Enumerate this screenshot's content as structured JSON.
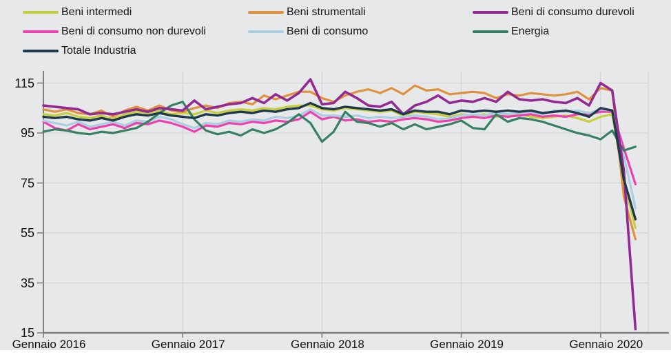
{
  "panel": {
    "background": "#e7e8ea",
    "axis_color": "#7f7f7f",
    "grid_color": "#d3d4d8"
  },
  "legend": {
    "items": [
      {
        "label": "Beni intermedi",
        "color": "#c9ce3e"
      },
      {
        "label": "Beni strumentali",
        "color": "#df923d"
      },
      {
        "label": "Beni di consumo durevoli",
        "color": "#932a93"
      },
      {
        "label": "Beni di consumo non durevoli",
        "color": "#ee3fae"
      },
      {
        "label": "Beni di consumo",
        "color": "#a9cfe0"
      },
      {
        "label": "Energia",
        "color": "#377f63"
      },
      {
        "label": "Totale Industria",
        "color": "#1c3a4a"
      }
    ]
  },
  "chart_data": {
    "type": "line",
    "title": "",
    "x_frequency": "monthly",
    "x_tick_labels": [
      "Gennaio 2016",
      "Gennaio 2017",
      "Gennaio 2018",
      "Gennaio 2019",
      "Gennaio 2020"
    ],
    "x_tick_month_indices": [
      0,
      12,
      24,
      36,
      48
    ],
    "y_ticks": [
      15,
      35,
      55,
      75,
      95,
      115
    ],
    "ylim": [
      15,
      118
    ],
    "grid": true,
    "legend_position": "top",
    "series": [
      {
        "name": "Beni intermedi",
        "color": "#c9ce3e",
        "values": [
          102.5,
          102,
          103,
          101.5,
          101,
          102,
          100.5,
          102.5,
          103.5,
          103,
          104,
          102.5,
          103,
          102.5,
          104,
          103,
          104,
          104.5,
          104,
          105,
          104.5,
          105.5,
          106,
          106,
          104.5,
          104,
          105,
          104.5,
          104,
          103.5,
          104,
          102,
          103.5,
          103,
          102.5,
          101.5,
          102.5,
          102,
          102.5,
          101.5,
          102,
          102.5,
          101.5,
          101,
          101.5,
          102,
          101,
          99.5,
          101.5,
          102.5,
          76,
          57
        ]
      },
      {
        "name": "Beni strumentali",
        "color": "#df923d",
        "values": [
          104.5,
          103.5,
          104.5,
          103,
          102.5,
          104,
          101.5,
          104,
          105.5,
          104,
          106,
          104,
          103.5,
          105,
          106,
          105,
          107,
          107.5,
          106.5,
          110,
          108.5,
          110,
          111.5,
          111.5,
          109,
          107.5,
          110,
          111.5,
          112.5,
          111,
          113,
          110.5,
          114,
          112,
          112.5,
          110.5,
          111,
          111.5,
          111,
          109,
          110.5,
          110,
          111,
          110.5,
          110,
          110.5,
          111.5,
          108.5,
          113,
          112,
          69.5,
          52.5
        ]
      },
      {
        "name": "Beni di consumo durevoli",
        "color": "#932a93",
        "values": [
          106,
          105.5,
          105,
          104.5,
          102.5,
          103,
          102.5,
          103.5,
          104.5,
          103.5,
          105,
          104.5,
          104,
          108,
          104.5,
          105.5,
          106.5,
          107,
          109,
          107,
          110.5,
          108,
          111,
          116.5,
          106.5,
          107,
          111.5,
          109,
          106,
          105.5,
          107.5,
          102.5,
          106,
          107.5,
          110,
          107,
          108,
          107.5,
          109,
          107.5,
          111.5,
          108.5,
          108,
          108.5,
          107.5,
          107,
          109,
          106,
          115,
          112,
          80,
          16.5
        ]
      },
      {
        "name": "Beni di consumo non durevoli",
        "color": "#ee3fae",
        "values": [
          99.5,
          97,
          96,
          98.5,
          96.5,
          97.5,
          98.5,
          97,
          99,
          98.5,
          100,
          99,
          97.5,
          95.5,
          98,
          97.5,
          99,
          98.5,
          99.5,
          99,
          100,
          99.5,
          100.5,
          103.5,
          100.5,
          101.5,
          100,
          100.5,
          99.5,
          100,
          99.5,
          100.5,
          101,
          100.5,
          99.5,
          100,
          101,
          101.5,
          101,
          102,
          101.5,
          102,
          102.5,
          101.5,
          102,
          101.5,
          102.5,
          102.5,
          103.5,
          103.5,
          89,
          74.5
        ]
      },
      {
        "name": "Beni di consumo",
        "color": "#a9cfe0",
        "values": [
          100,
          99,
          98,
          99.5,
          97.5,
          98.5,
          99.5,
          98,
          100,
          99.5,
          101.5,
          100.5,
          98.5,
          97,
          99,
          98.5,
          100,
          99.5,
          100.5,
          100,
          101.5,
          101,
          102,
          104.5,
          102,
          102,
          101.5,
          102,
          101,
          101.5,
          101,
          101.5,
          102,
          101.5,
          100.5,
          101,
          102,
          102.5,
          102,
          103,
          102.5,
          103,
          103.5,
          102.5,
          104,
          103.5,
          104,
          103,
          104.5,
          104,
          86,
          65
        ]
      },
      {
        "name": "Energia",
        "color": "#377f63",
        "values": [
          95.5,
          96.5,
          96,
          95,
          94.5,
          95.5,
          95,
          96,
          97,
          99.5,
          103,
          106,
          107.5,
          100.5,
          96,
          94.5,
          95.5,
          94,
          96.5,
          95,
          96.5,
          99,
          102.5,
          99,
          91.5,
          95.5,
          103.5,
          99.5,
          99,
          97.5,
          99,
          96.5,
          98.5,
          96.5,
          97.5,
          98.5,
          100,
          97,
          96.5,
          102.5,
          99.5,
          101,
          100.5,
          99.5,
          98,
          96.5,
          95,
          94,
          92.5,
          96,
          88,
          89.5
        ]
      },
      {
        "name": "Totale Industria",
        "color": "#1c3a4a",
        "values": [
          101.5,
          101,
          101.5,
          100.5,
          100,
          101,
          100,
          101.5,
          102.5,
          102,
          103,
          102,
          101.5,
          101,
          102.5,
          102,
          103,
          103.5,
          103,
          104,
          103.5,
          104.5,
          105,
          107,
          105,
          104.5,
          105.5,
          105,
          104.5,
          104,
          104.5,
          102.5,
          104,
          103.5,
          103.5,
          102.5,
          104,
          103.5,
          104,
          103.5,
          104,
          103.5,
          104,
          103,
          103.5,
          104,
          103,
          101.5,
          105,
          104,
          76.5,
          60.5
        ]
      }
    ]
  }
}
